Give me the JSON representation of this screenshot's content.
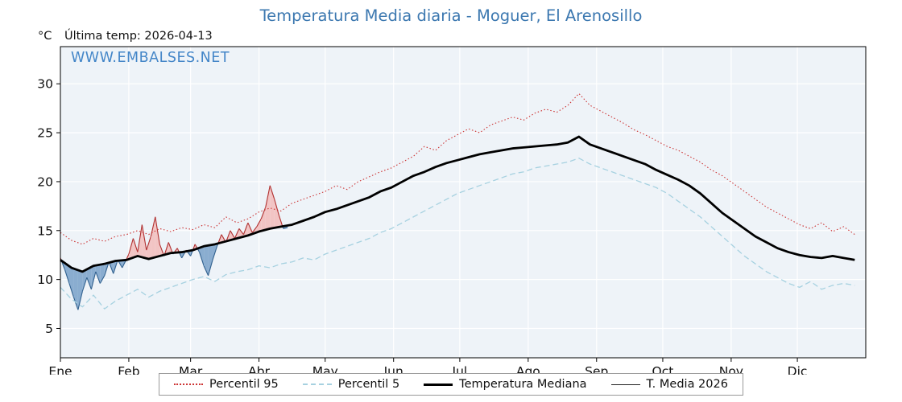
{
  "header": {
    "title": "Temperatura Media diaria - Moguer, El Arenosillo",
    "unit": "°C",
    "last_temp": "Última temp: 2026-04-13",
    "watermark": "WWW.EMBALSES.NET"
  },
  "legend": {
    "items": [
      {
        "label": "Percentil 95",
        "style": "dotted",
        "color": "#cc3333"
      },
      {
        "label": "Percentil 5",
        "style": "dashed",
        "color": "#a6d1e0"
      },
      {
        "label": "Temperatura Mediana",
        "style": "solid-thick",
        "color": "#000000"
      },
      {
        "label": "T. Media 2026",
        "style": "solid-thin",
        "color": "#222222"
      }
    ]
  },
  "chart_data": {
    "type": "line",
    "title": "Temperatura Media diaria - Moguer, El Arenosillo",
    "xlabel": "",
    "ylabel": "°C",
    "ylim": [
      2,
      33.8
    ],
    "yticks": [
      5,
      10,
      15,
      20,
      25,
      30
    ],
    "grid": true,
    "legend_position": "bottom",
    "plot_bg": "#eef3f8",
    "grid_color": "#ffffff",
    "month_labels": [
      "Ene",
      "Feb",
      "Mar",
      "Abr",
      "May",
      "Jun",
      "Jul",
      "Ago",
      "Sep",
      "Oct",
      "Nov",
      "Dic"
    ],
    "month_start_days": [
      0,
      31,
      59,
      90,
      120,
      151,
      181,
      212,
      243,
      273,
      304,
      334
    ],
    "days": [
      0,
      5,
      10,
      15,
      20,
      25,
      30,
      35,
      40,
      45,
      50,
      55,
      60,
      65,
      70,
      75,
      80,
      85,
      90,
      95,
      100,
      105,
      110,
      115,
      120,
      125,
      130,
      135,
      140,
      145,
      150,
      155,
      160,
      165,
      170,
      175,
      180,
      185,
      190,
      195,
      200,
      205,
      210,
      215,
      220,
      225,
      230,
      235,
      240,
      245,
      250,
      255,
      260,
      265,
      270,
      275,
      280,
      285,
      290,
      295,
      300,
      305,
      310,
      315,
      320,
      325,
      330,
      335,
      340,
      345,
      350,
      355,
      360
    ],
    "series": [
      {
        "name": "Percentil 95",
        "color": "#cc3333",
        "dash": "dotted",
        "width": 1.1,
        "values": [
          14.8,
          14.0,
          13.6,
          14.2,
          13.9,
          14.4,
          14.6,
          15.0,
          14.6,
          15.2,
          14.9,
          15.3,
          15.1,
          15.6,
          15.3,
          16.4,
          15.8,
          16.2,
          16.9,
          17.3,
          17.0,
          17.8,
          18.2,
          18.6,
          19.0,
          19.6,
          19.2,
          20.0,
          20.5,
          21.0,
          21.4,
          22.0,
          22.6,
          23.6,
          23.2,
          24.2,
          24.8,
          25.4,
          25.0,
          25.8,
          26.2,
          26.6,
          26.3,
          27.0,
          27.4,
          27.1,
          27.8,
          29.0,
          27.8,
          27.2,
          26.6,
          26.0,
          25.3,
          24.8,
          24.2,
          23.6,
          23.2,
          22.6,
          22.0,
          21.2,
          20.6,
          19.8,
          19.0,
          18.2,
          17.4,
          16.8,
          16.2,
          15.6,
          15.2,
          15.8,
          14.9,
          15.4,
          14.6
        ]
      },
      {
        "name": "Percentil 5",
        "color": "#a6d1e0",
        "dash": "dashed",
        "width": 1.3,
        "values": [
          9.2,
          8.0,
          7.2,
          8.4,
          7.0,
          7.8,
          8.4,
          9.0,
          8.2,
          8.8,
          9.2,
          9.6,
          10.0,
          10.3,
          9.8,
          10.5,
          10.8,
          11.0,
          11.4,
          11.2,
          11.6,
          11.8,
          12.2,
          12.0,
          12.6,
          13.0,
          13.4,
          13.8,
          14.2,
          14.8,
          15.2,
          15.8,
          16.4,
          17.0,
          17.6,
          18.2,
          18.8,
          19.2,
          19.6,
          20.0,
          20.4,
          20.8,
          21.0,
          21.4,
          21.6,
          21.8,
          22.0,
          22.4,
          21.8,
          21.4,
          21.0,
          20.6,
          20.2,
          19.8,
          19.4,
          18.8,
          18.0,
          17.2,
          16.4,
          15.4,
          14.4,
          13.4,
          12.4,
          11.6,
          10.8,
          10.2,
          9.6,
          9.2,
          9.8,
          9.0,
          9.4,
          9.6,
          9.4
        ]
      },
      {
        "name": "Temperatura Mediana",
        "color": "#000000",
        "dash": "solid",
        "width": 2.8,
        "values": [
          12.0,
          11.2,
          10.8,
          11.4,
          11.6,
          11.9,
          12.0,
          12.4,
          12.1,
          12.4,
          12.7,
          12.8,
          13.0,
          13.4,
          13.6,
          13.9,
          14.2,
          14.5,
          14.9,
          15.2,
          15.4,
          15.6,
          16.0,
          16.4,
          16.9,
          17.2,
          17.6,
          18.0,
          18.4,
          19.0,
          19.4,
          20.0,
          20.6,
          21.0,
          21.5,
          21.9,
          22.2,
          22.5,
          22.8,
          23.0,
          23.2,
          23.4,
          23.5,
          23.6,
          23.7,
          23.8,
          24.0,
          24.6,
          23.8,
          23.4,
          23.0,
          22.6,
          22.2,
          21.8,
          21.2,
          20.7,
          20.2,
          19.6,
          18.8,
          17.8,
          16.8,
          16.0,
          15.2,
          14.4,
          13.8,
          13.2,
          12.8,
          12.5,
          12.3,
          12.2,
          12.4,
          12.2,
          12.0
        ]
      }
    ],
    "t2026": {
      "name": "T. Media 2026",
      "last_date": "2026-04-13",
      "days": [
        0,
        2,
        4,
        6,
        8,
        10,
        12,
        14,
        16,
        18,
        20,
        22,
        24,
        26,
        28,
        31,
        33,
        35,
        37,
        39,
        41,
        43,
        45,
        47,
        49,
        51,
        53,
        55,
        57,
        59,
        61,
        63,
        65,
        67,
        69,
        71,
        73,
        75,
        77,
        79,
        81,
        83,
        85,
        87,
        89,
        91,
        93,
        95,
        97,
        99,
        101,
        103
      ],
      "values": [
        12.2,
        11.0,
        9.6,
        8.2,
        6.9,
        8.8,
        10.2,
        9.0,
        10.8,
        9.6,
        10.4,
        11.8,
        10.6,
        12.0,
        11.2,
        12.6,
        14.2,
        12.8,
        15.6,
        13.0,
        14.4,
        16.4,
        13.6,
        12.4,
        13.8,
        12.6,
        13.2,
        12.2,
        13.0,
        12.4,
        13.6,
        12.8,
        11.4,
        10.4,
        12.0,
        13.4,
        14.6,
        13.8,
        15.0,
        14.2,
        15.2,
        14.6,
        15.8,
        14.8,
        15.4,
        16.2,
        17.4,
        19.6,
        18.2,
        16.6,
        15.2,
        15.3
      ],
      "above_fill": "#f2c4c4",
      "below_fill": "#8aadd0",
      "above_line": "#b03030",
      "below_line": "#31618f"
    }
  }
}
